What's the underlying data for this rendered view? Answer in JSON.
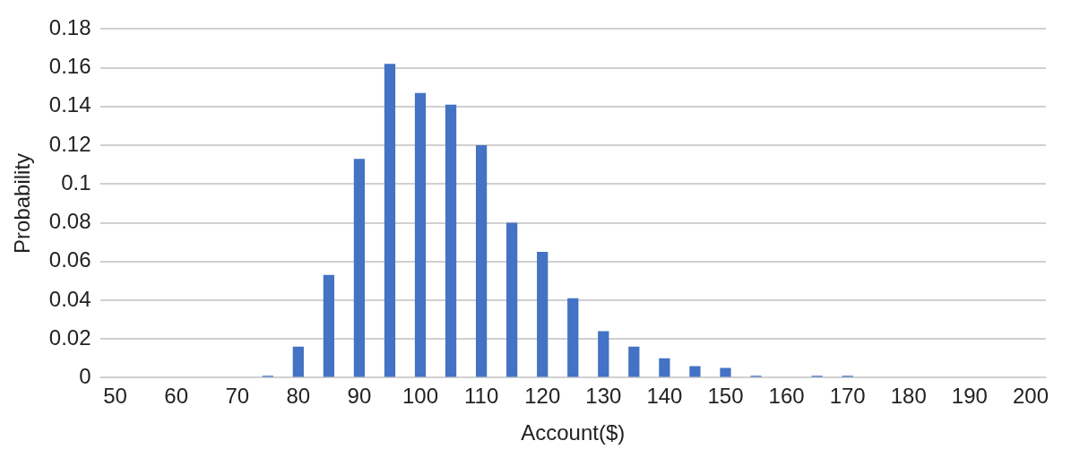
{
  "chart_data": {
    "type": "bar",
    "xlabel": "Account($)",
    "ylabel": "Probability",
    "categories": [
      "50",
      null,
      "60",
      null,
      "70",
      null,
      "80",
      null,
      "90",
      null,
      "100",
      null,
      "110",
      null,
      "120",
      null,
      "130",
      null,
      "140",
      null,
      "150",
      null,
      "160",
      null,
      "170",
      null,
      "180",
      null,
      "190",
      null,
      "200"
    ],
    "values": [
      0,
      0,
      0,
      0,
      0,
      0.001,
      0.016,
      0.053,
      0.113,
      0.162,
      0.147,
      0.141,
      0.12,
      0.08,
      0.065,
      0.041,
      0.024,
      0.016,
      0.01,
      0.006,
      0.005,
      0.001,
      0,
      0.001,
      0.001,
      0,
      0,
      0,
      0,
      0,
      0
    ],
    "color": "#4472c4",
    "ylim": [
      0,
      0.18
    ],
    "yticks": [
      0,
      0.02,
      0.04,
      0.06,
      0.08,
      0.1,
      0.12,
      0.14,
      0.16,
      0.18
    ],
    "grid": "y"
  }
}
